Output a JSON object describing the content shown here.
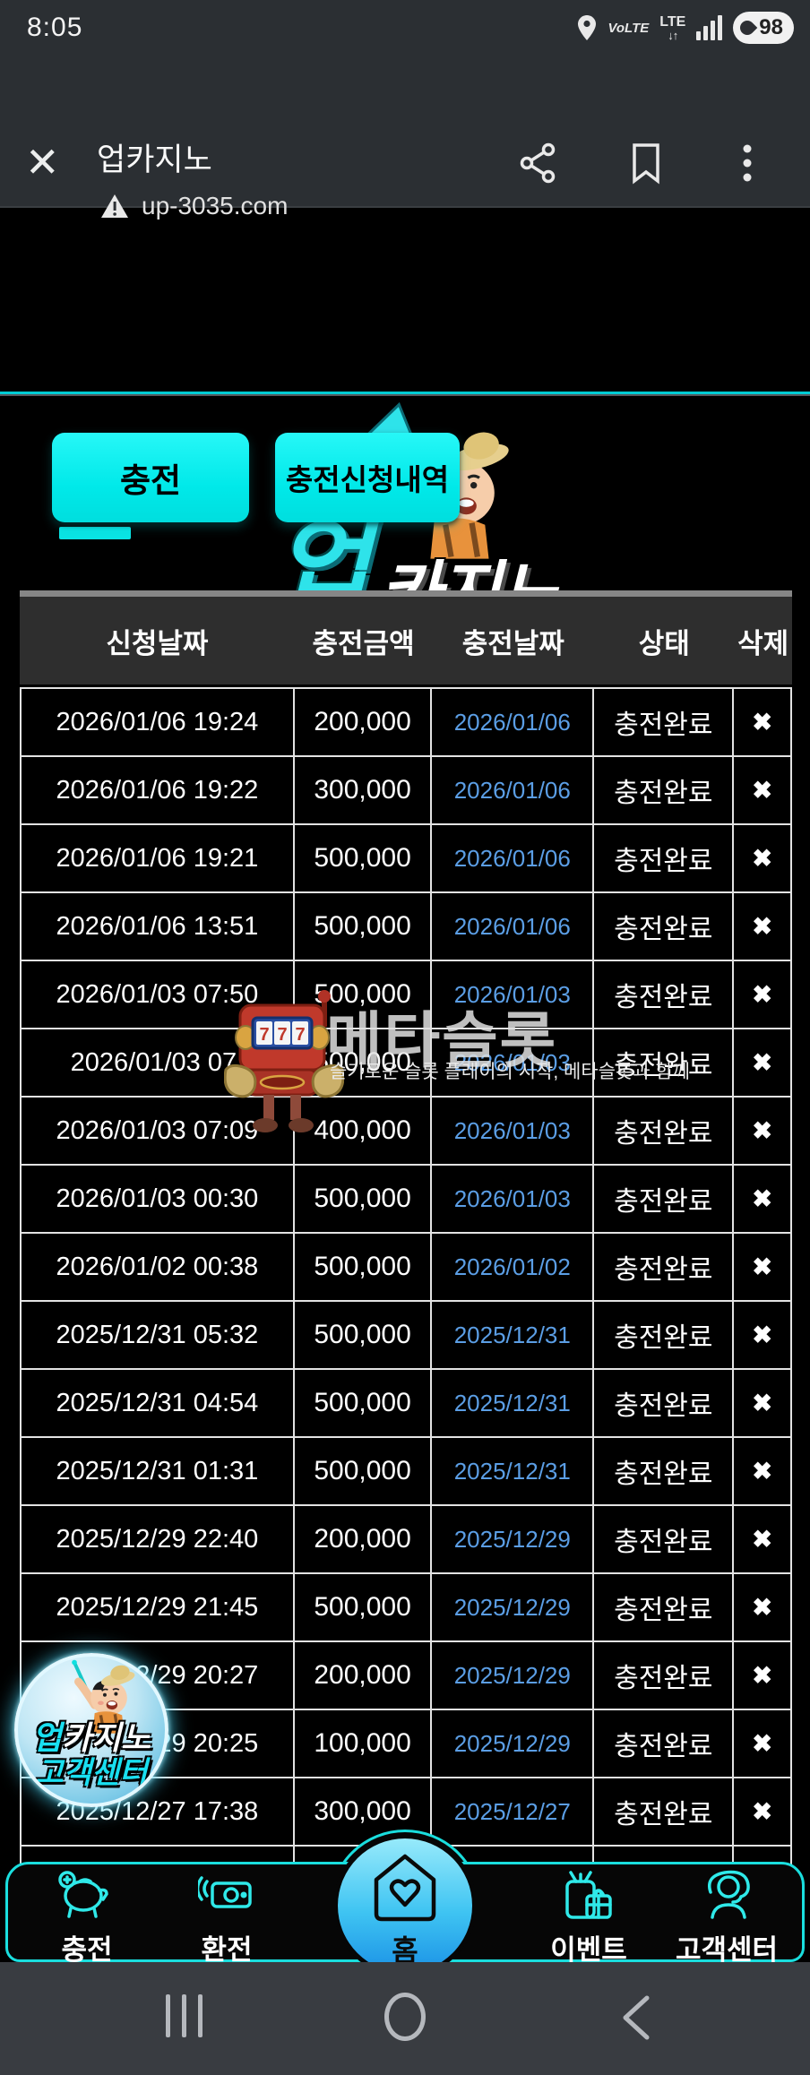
{
  "status_bar": {
    "time": "8:05",
    "volte": "VoLTE",
    "lte": "LTE",
    "lte_arrows": "↓↑",
    "battery": "98"
  },
  "browser": {
    "close_glyph": "✕",
    "title": "업카지노",
    "url": "up-3035.com"
  },
  "logo": {
    "up": "업",
    "casino": "카지노"
  },
  "buttons": {
    "charge": "충전",
    "history": "충전신청내역"
  },
  "table": {
    "headers": [
      "신청날짜",
      "충전금액",
      "충전날짜",
      "상태",
      "삭제"
    ],
    "delete_glyph": "✖",
    "rows": [
      {
        "requested": "2026/01/06 19:24",
        "amount": "200,000",
        "date": "2026/01/06",
        "status": "충전완료"
      },
      {
        "requested": "2026/01/06 19:22",
        "amount": "300,000",
        "date": "2026/01/06",
        "status": "충전완료"
      },
      {
        "requested": "2026/01/06 19:21",
        "amount": "500,000",
        "date": "2026/01/06",
        "status": "충전완료"
      },
      {
        "requested": "2026/01/06 13:51",
        "amount": "500,000",
        "date": "2026/01/06",
        "status": "충전완료"
      },
      {
        "requested": "2026/01/03 07:50",
        "amount": "500,000",
        "date": "2026/01/03",
        "status": "충전완료"
      },
      {
        "requested": "2026/01/03 07:",
        "amount": "500,000",
        "date": "2026/01/03",
        "status": "충전완료"
      },
      {
        "requested": "2026/01/03 07:09",
        "amount": "400,000",
        "date": "2026/01/03",
        "status": "충전완료"
      },
      {
        "requested": "2026/01/03 00:30",
        "amount": "500,000",
        "date": "2026/01/03",
        "status": "충전완료"
      },
      {
        "requested": "2026/01/02 00:38",
        "amount": "500,000",
        "date": "2026/01/02",
        "status": "충전완료"
      },
      {
        "requested": "2025/12/31 05:32",
        "amount": "500,000",
        "date": "2025/12/31",
        "status": "충전완료"
      },
      {
        "requested": "2025/12/31 04:54",
        "amount": "500,000",
        "date": "2025/12/31",
        "status": "충전완료"
      },
      {
        "requested": "2025/12/31 01:31",
        "amount": "500,000",
        "date": "2025/12/31",
        "status": "충전완료"
      },
      {
        "requested": "2025/12/29 22:40",
        "amount": "200,000",
        "date": "2025/12/29",
        "status": "충전완료"
      },
      {
        "requested": "2025/12/29 21:45",
        "amount": "500,000",
        "date": "2025/12/29",
        "status": "충전완료"
      },
      {
        "requested": "2025/12/29 20:27",
        "amount": "200,000",
        "date": "2025/12/29",
        "status": "충전완료"
      },
      {
        "requested": "2025/12/29 20:25",
        "amount": "100,000",
        "date": "2025/12/29",
        "status": "충전완료"
      },
      {
        "requested": "2025/12/27 17:38",
        "amount": "300,000",
        "date": "2025/12/27",
        "status": "충전완료"
      },
      {
        "requested": "",
        "amount": "",
        "date": "",
        "status": "",
        "partial": true
      }
    ]
  },
  "watermark": {
    "slot_reels": "777",
    "title": "메타슬롯",
    "subtitle": "슬기로운 슬롯 플레이의 시작, 메타슬롯과 함께"
  },
  "badge": {
    "up": "업",
    "casino": "카지노",
    "line2": "고객센터"
  },
  "bottom_nav": {
    "items": [
      {
        "label": "충전"
      },
      {
        "label": "환전"
      },
      {
        "label": "홈"
      },
      {
        "label": "이벤트"
      },
      {
        "label": "고객센터"
      }
    ]
  },
  "colors": {
    "accent_cyan": "#0ae4e4",
    "button_cyan": "#00e9e9",
    "link_blue": "#5b9ee5",
    "home_blue": "#1b92e6"
  }
}
